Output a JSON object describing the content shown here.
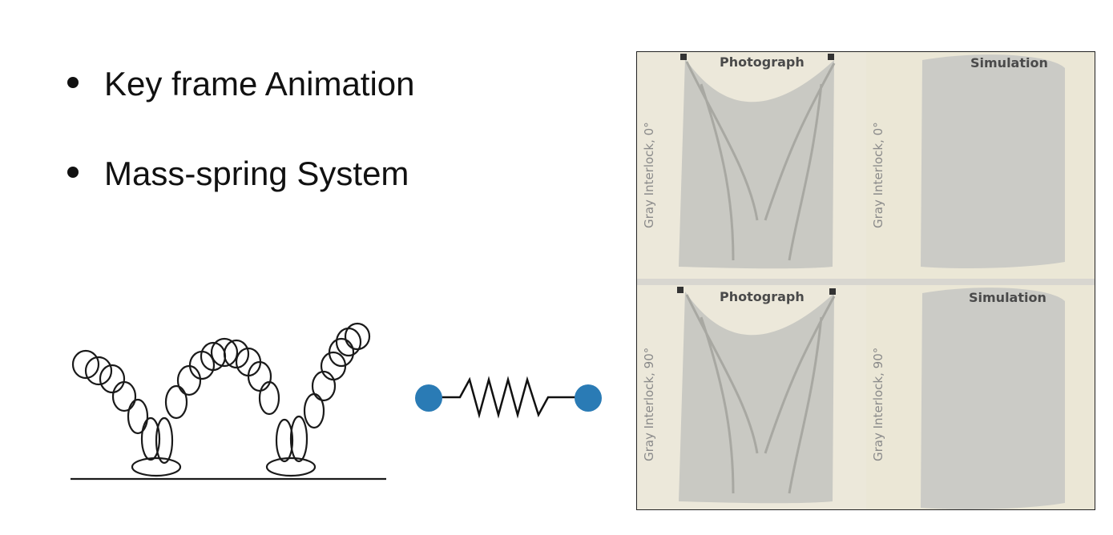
{
  "bullets": [
    {
      "text": "Key frame Animation"
    },
    {
      "text": "Mass-spring System"
    }
  ],
  "figure": {
    "panels": [
      {
        "title": "Photograph",
        "side_label": "Gray Interlock, 0°"
      },
      {
        "title": "Simulation",
        "side_label": "Gray Interlock, 0°"
      },
      {
        "title": "Photograph",
        "side_label": "Gray Interlock, 90°"
      },
      {
        "title": "Simulation",
        "side_label": "Gray Interlock, 90°"
      }
    ]
  },
  "colors": {
    "mass_blue": "#2a7bb5",
    "cloth": "#c9c9c3",
    "background_wall": "#ece8da"
  }
}
